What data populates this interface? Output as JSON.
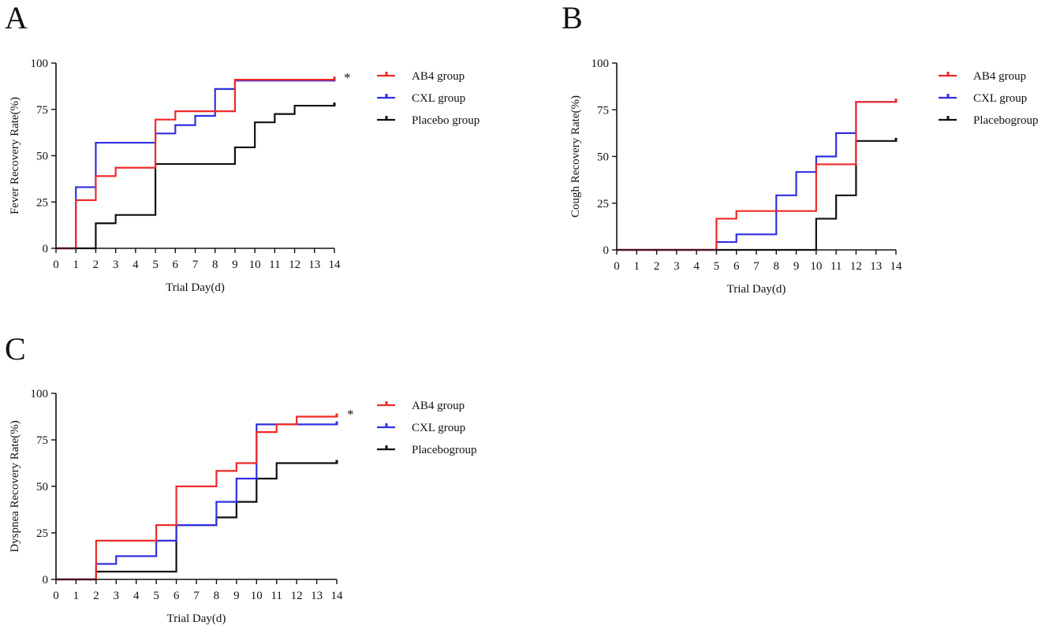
{
  "figure": {
    "colors": {
      "ab4": "#ee2a2a",
      "cxl": "#3030e0",
      "placebo": "#111111",
      "axis": "#111111"
    }
  },
  "chart_data": [
    {
      "panel": "A",
      "type": "line",
      "subtype": "step (Kaplan-Meier style cumulative recovery)",
      "xlabel": "Trial Day(d)",
      "ylabel": "Fever  Recovery Rate(%)",
      "xlim": [
        0,
        14
      ],
      "ylim": [
        0,
        100
      ],
      "xticks": [
        0,
        1,
        2,
        3,
        4,
        5,
        6,
        7,
        8,
        9,
        10,
        11,
        12,
        13,
        14
      ],
      "yticks": [
        0,
        25,
        50,
        75,
        100
      ],
      "grid": false,
      "legend_position": "right",
      "significance_mark": "*",
      "series": [
        {
          "name": "AB4 group",
          "key": "ab4",
          "x": [
            0,
            1,
            2,
            3,
            5,
            6,
            9,
            14
          ],
          "y": [
            0,
            26,
            39,
            43.5,
            69.5,
            74,
            91,
            91
          ]
        },
        {
          "name": "CXL group",
          "key": "cxl",
          "x": [
            0,
            1,
            2,
            5,
            6,
            7,
            8,
            9,
            14
          ],
          "y": [
            0,
            33,
            57,
            62,
            66.5,
            71.5,
            86,
            90.5,
            90.5
          ]
        },
        {
          "name": "Placebo group",
          "key": "placebo",
          "x": [
            0,
            2,
            3,
            5,
            9,
            10,
            11,
            12,
            14
          ],
          "y": [
            0,
            13.5,
            18,
            45.5,
            54.5,
            68,
            72.5,
            77,
            77
          ]
        }
      ]
    },
    {
      "panel": "B",
      "type": "line",
      "subtype": "step (Kaplan-Meier style cumulative recovery)",
      "xlabel": "Trial Day(d)",
      "ylabel": "Cough Recovery Rate(%)",
      "xlim": [
        0,
        14
      ],
      "ylim": [
        0,
        100
      ],
      "xticks": [
        0,
        1,
        2,
        3,
        4,
        5,
        6,
        7,
        8,
        9,
        10,
        11,
        12,
        13,
        14
      ],
      "yticks": [
        0,
        25,
        50,
        75,
        100
      ],
      "grid": false,
      "legend_position": "right",
      "significance_mark": "",
      "series": [
        {
          "name": "AB4 group",
          "key": "ab4",
          "x": [
            0,
            5,
            6,
            10,
            12,
            14
          ],
          "y": [
            0,
            16.7,
            20.8,
            45.8,
            79.2,
            79.2
          ]
        },
        {
          "name": "CXL group",
          "key": "cxl",
          "x": [
            0,
            5,
            6,
            8,
            9,
            10,
            11,
            12,
            14
          ],
          "y": [
            0,
            4.2,
            8.3,
            29.2,
            41.7,
            50,
            62.5,
            79.2,
            79.2
          ]
        },
        {
          "name": "Placebogroup",
          "key": "placebo",
          "x": [
            0,
            10,
            11,
            12,
            14
          ],
          "y": [
            0,
            16.7,
            29.2,
            58.3,
            58.3
          ]
        }
      ]
    },
    {
      "panel": "C",
      "type": "line",
      "subtype": "step (Kaplan-Meier style cumulative recovery)",
      "xlabel": "Trial Day(d)",
      "ylabel": "Dyspnea  Recovery Rate(%)",
      "xlim": [
        0,
        14
      ],
      "ylim": [
        0,
        100
      ],
      "xticks": [
        0,
        1,
        2,
        3,
        4,
        5,
        6,
        7,
        8,
        9,
        10,
        11,
        12,
        13,
        14
      ],
      "yticks": [
        0,
        25,
        50,
        75,
        100
      ],
      "grid": false,
      "legend_position": "right",
      "significance_mark": "*",
      "series": [
        {
          "name": "AB4 group",
          "key": "ab4",
          "x": [
            0,
            2,
            5,
            6,
            8,
            9,
            10,
            11,
            12,
            14
          ],
          "y": [
            0,
            20.8,
            29.2,
            50,
            58.3,
            62.5,
            79.2,
            83.3,
            87.5,
            87.5
          ]
        },
        {
          "name": "CXL group",
          "key": "cxl",
          "x": [
            0,
            2,
            3,
            5,
            6,
            8,
            9,
            10,
            14
          ],
          "y": [
            0,
            8.3,
            12.5,
            20.8,
            29.2,
            41.7,
            54.2,
            83.3,
            83.3
          ]
        },
        {
          "name": "Placebogroup",
          "key": "placebo",
          "x": [
            0,
            2,
            6,
            8,
            9,
            10,
            11,
            14
          ],
          "y": [
            0,
            4.2,
            29.2,
            33.3,
            41.7,
            54.2,
            62.5,
            62.5
          ]
        }
      ]
    }
  ]
}
